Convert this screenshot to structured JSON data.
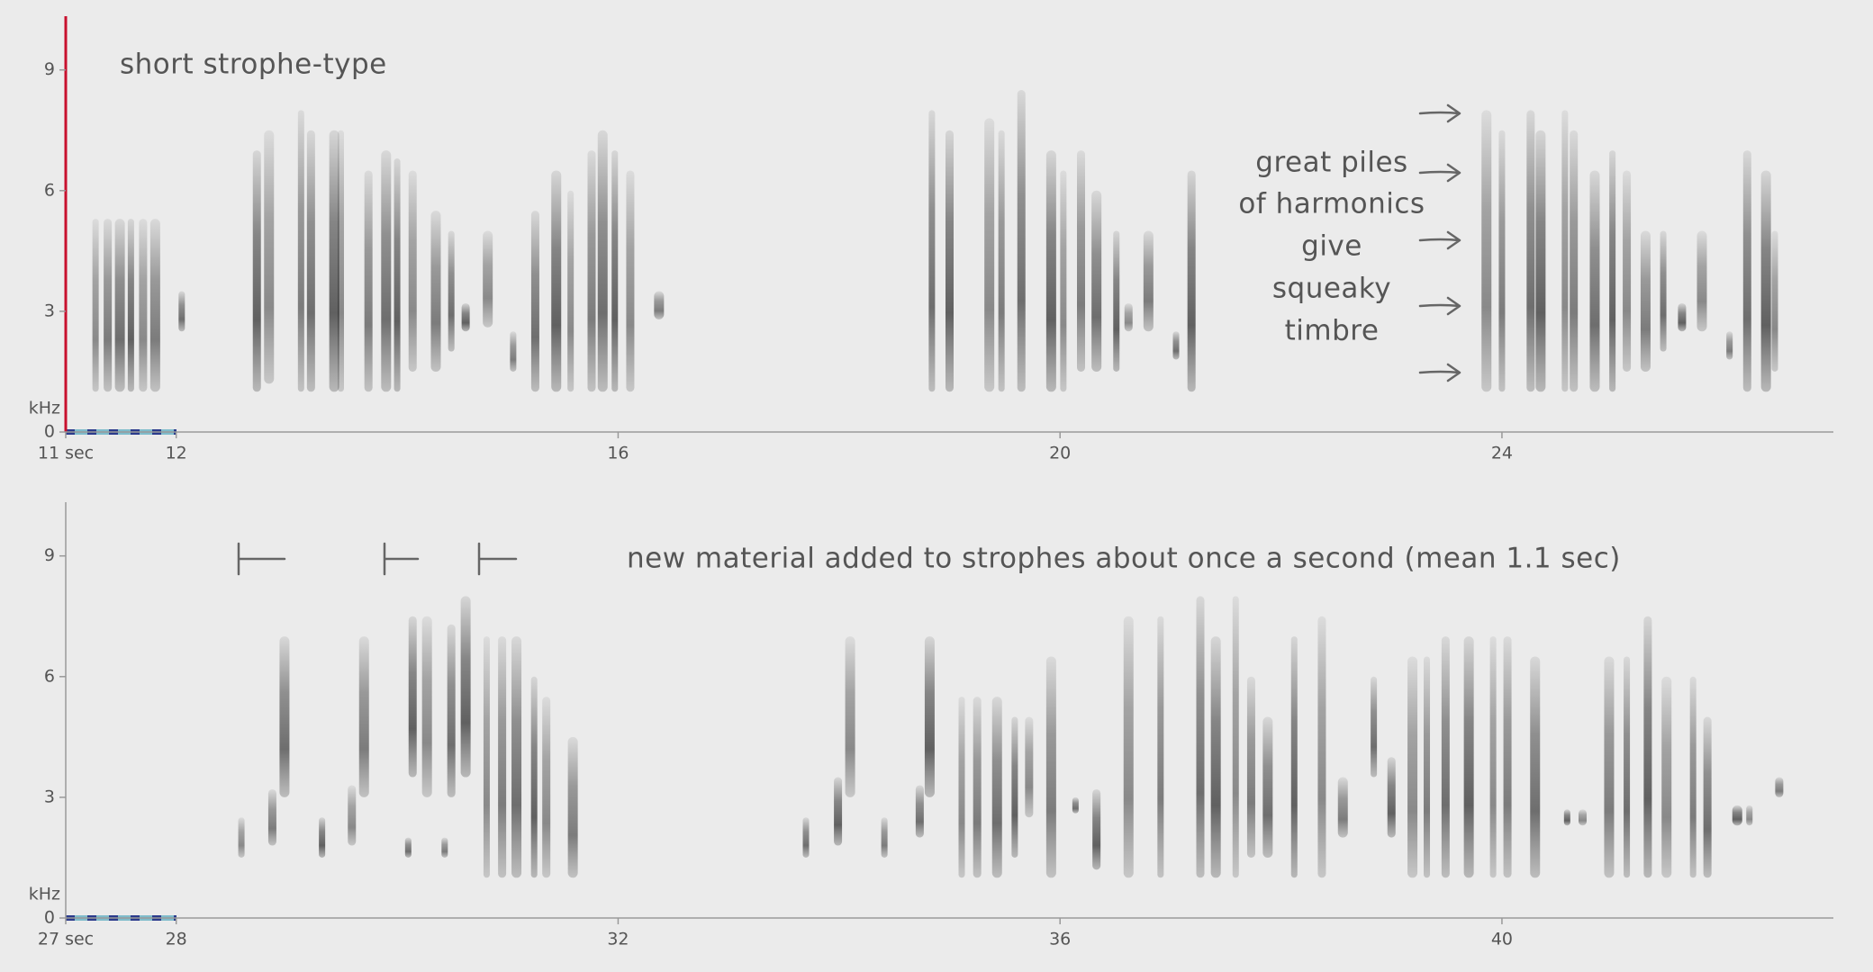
{
  "chart_data": [
    {
      "type": "spectrogram",
      "y_unit": "kHz",
      "xlim": [
        11,
        27
      ],
      "xticks": [
        {
          "value": 11,
          "label": "11 sec"
        },
        12,
        16,
        20,
        24
      ],
      "ylim": [
        0,
        10
      ],
      "yticks": [
        0,
        3,
        6,
        9
      ],
      "title": "short strophe-type",
      "note": [
        "great piles",
        "of harmonics",
        "give",
        "squeaky",
        "timbre"
      ],
      "streaks": {
        "t": [
          11.27,
          11.38,
          11.49,
          11.59,
          11.7,
          11.81,
          12.05,
          12.73,
          12.84,
          13.13,
          13.22,
          13.43,
          13.49,
          13.74,
          13.9,
          14.0,
          14.14,
          14.35,
          14.49,
          14.62,
          14.82,
          15.05,
          15.25,
          15.44,
          15.57,
          15.76,
          15.86,
          15.97,
          16.11,
          16.37,
          18.84,
          19.0,
          19.36,
          19.47,
          19.65,
          19.92,
          20.03,
          20.19,
          20.33,
          20.51,
          20.62,
          20.8,
          21.05,
          21.19,
          23.86,
          24.0,
          24.26,
          24.35,
          24.57,
          24.65,
          24.84,
          25.0,
          25.13,
          25.3,
          25.46,
          25.63,
          25.81,
          26.06,
          26.22,
          26.39,
          26.47
        ],
        "f_low": [
          1,
          1,
          1,
          1,
          1,
          1,
          2.5,
          1,
          1.2,
          1,
          1,
          1,
          1,
          1,
          1,
          1,
          1.5,
          1.5,
          2,
          2.5,
          2.6,
          1.5,
          1,
          1,
          1,
          1,
          1,
          1,
          1,
          2.8,
          1,
          1,
          1,
          1,
          1,
          1,
          1,
          1.5,
          1.5,
          1.5,
          2.5,
          2.5,
          1.8,
          1,
          1,
          1,
          1,
          1,
          1,
          1,
          1,
          1,
          1.5,
          1.5,
          2,
          2.5,
          2.5,
          1.8,
          1,
          1,
          1.5
        ],
        "f_high": [
          5.3,
          5.3,
          5.3,
          5.3,
          5.3,
          5.3,
          3.5,
          7,
          7.5,
          8,
          7.5,
          7.5,
          7.5,
          6.5,
          7,
          6.8,
          6.5,
          5.5,
          5,
          3.2,
          5,
          2.5,
          5.5,
          6.5,
          6,
          7,
          7.5,
          7,
          6.5,
          3.5,
          8,
          7.5,
          7.8,
          7.5,
          8.5,
          7,
          6.5,
          7,
          6,
          5,
          3.2,
          5,
          2.5,
          6.5,
          8,
          7.5,
          8,
          7.5,
          8,
          7.5,
          6.5,
          7,
          6.5,
          5,
          5,
          3.2,
          5,
          2.5,
          7,
          6.5,
          5
        ]
      }
    },
    {
      "type": "spectrogram",
      "y_unit": "kHz",
      "xlim": [
        27,
        43
      ],
      "xticks": [
        {
          "value": 27,
          "label": "27 sec"
        },
        28,
        32,
        36,
        40
      ],
      "ylim": [
        0,
        10
      ],
      "yticks": [
        0,
        3,
        6,
        9
      ],
      "title": "new material added to strophes about once a second (mean 1.1 sec)",
      "streaks": {
        "t": [
          28.59,
          28.87,
          28.98,
          29.32,
          29.59,
          29.7,
          30.1,
          30.14,
          30.27,
          30.43,
          30.49,
          30.62,
          30.81,
          30.95,
          31.08,
          31.24,
          31.35,
          31.59,
          33.7,
          33.99,
          34.1,
          34.41,
          34.73,
          34.82,
          35.11,
          35.25,
          35.43,
          35.59,
          35.72,
          35.92,
          36.14,
          36.33,
          36.62,
          36.91,
          37.27,
          37.41,
          37.59,
          37.73,
          37.88,
          38.12,
          38.37,
          38.56,
          38.84,
          39.0,
          39.19,
          39.32,
          39.49,
          39.7,
          39.92,
          40.05,
          40.3,
          40.59,
          40.73,
          40.97,
          41.13,
          41.32,
          41.49,
          41.73,
          41.86,
          42.13,
          42.24,
          42.51
        ],
        "f_low": [
          1.5,
          1.8,
          3,
          1.5,
          1.8,
          3,
          1.5,
          3.5,
          3,
          1.5,
          3,
          3.5,
          1,
          1,
          1,
          1,
          1,
          1,
          1.5,
          1.8,
          3,
          1.5,
          2,
          3,
          1,
          1,
          1,
          1.5,
          2.5,
          1,
          2.6,
          1.2,
          1,
          1,
          1,
          1,
          1,
          1.5,
          1.5,
          1,
          1,
          2,
          3.5,
          2,
          1,
          1,
          1,
          1,
          1,
          1,
          1,
          2.3,
          2.3,
          1,
          1,
          1,
          1,
          1,
          1,
          2.3,
          2.3,
          3
        ],
        "f_high": [
          2.5,
          3.2,
          7,
          2.5,
          3.3,
          7,
          2,
          7.5,
          7.5,
          2,
          7.3,
          8,
          7,
          7,
          7,
          6,
          5.5,
          4.5,
          2.5,
          3.5,
          7,
          2.5,
          3.3,
          7,
          5.5,
          5.5,
          5.5,
          5,
          5,
          6.5,
          3,
          3.2,
          7.5,
          7.5,
          8,
          7,
          8,
          6,
          5,
          7,
          7.5,
          3.5,
          6,
          4,
          6.5,
          6.5,
          7,
          7,
          7,
          7,
          6.5,
          2.7,
          2.7,
          6.5,
          6.5,
          7.5,
          6,
          6,
          5,
          2.8,
          2.8,
          3.5
        ]
      }
    }
  ]
}
